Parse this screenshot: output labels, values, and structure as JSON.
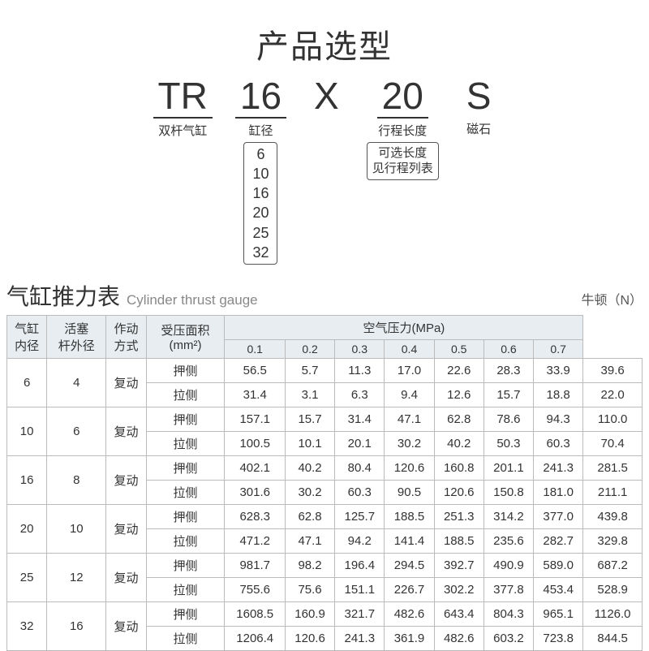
{
  "title": "产品选型",
  "model": {
    "parts": [
      {
        "code": "TR",
        "label": "双杆气缸",
        "options": null
      },
      {
        "code": "16",
        "label": "缸径",
        "options": [
          "6",
          "10",
          "16",
          "20",
          "25",
          "32"
        ]
      },
      {
        "code": "X",
        "label": "",
        "options": null,
        "no_border": true
      },
      {
        "code": "20",
        "label": "行程长度",
        "options_text": [
          "可选长度",
          "见行程列表"
        ]
      },
      {
        "code": "S",
        "label": "磁石",
        "options": null,
        "no_border": true
      }
    ]
  },
  "table": {
    "title_cn": "气缸推力表",
    "title_en": "Cylinder thrust gauge",
    "unit": "牛顿（N）",
    "headers": {
      "bore": "气缸\n内径",
      "rod": "活塞\n杆外径",
      "action": "作动\n方式",
      "area": "受压面积\n(mm²)",
      "pressure_group": "空气压力(MPa)",
      "pressures": [
        "0.1",
        "0.2",
        "0.3",
        "0.4",
        "0.5",
        "0.6",
        "0.7"
      ]
    },
    "action_label": "复动",
    "side_push": "押侧",
    "side_pull": "拉侧",
    "rows": [
      {
        "bore": "6",
        "rod": "4",
        "push": {
          "area": "56.5",
          "v": [
            "5.7",
            "11.3",
            "17.0",
            "22.6",
            "28.3",
            "33.9",
            "39.6"
          ]
        },
        "pull": {
          "area": "31.4",
          "v": [
            "3.1",
            "6.3",
            "9.4",
            "12.6",
            "15.7",
            "18.8",
            "22.0"
          ]
        }
      },
      {
        "bore": "10",
        "rod": "6",
        "push": {
          "area": "157.1",
          "v": [
            "15.7",
            "31.4",
            "47.1",
            "62.8",
            "78.6",
            "94.3",
            "110.0"
          ]
        },
        "pull": {
          "area": "100.5",
          "v": [
            "10.1",
            "20.1",
            "30.2",
            "40.2",
            "50.3",
            "60.3",
            "70.4"
          ]
        }
      },
      {
        "bore": "16",
        "rod": "8",
        "push": {
          "area": "402.1",
          "v": [
            "40.2",
            "80.4",
            "120.6",
            "160.8",
            "201.1",
            "241.3",
            "281.5"
          ]
        },
        "pull": {
          "area": "301.6",
          "v": [
            "30.2",
            "60.3",
            "90.5",
            "120.6",
            "150.8",
            "181.0",
            "211.1"
          ]
        }
      },
      {
        "bore": "20",
        "rod": "10",
        "push": {
          "area": "628.3",
          "v": [
            "62.8",
            "125.7",
            "188.5",
            "251.3",
            "314.2",
            "377.0",
            "439.8"
          ]
        },
        "pull": {
          "area": "471.2",
          "v": [
            "47.1",
            "94.2",
            "141.4",
            "188.5",
            "235.6",
            "282.7",
            "329.8"
          ]
        }
      },
      {
        "bore": "25",
        "rod": "12",
        "push": {
          "area": "981.7",
          "v": [
            "98.2",
            "196.4",
            "294.5",
            "392.7",
            "490.9",
            "589.0",
            "687.2"
          ]
        },
        "pull": {
          "area": "755.6",
          "v": [
            "75.6",
            "151.1",
            "226.7",
            "302.2",
            "377.8",
            "453.4",
            "528.9"
          ]
        }
      },
      {
        "bore": "32",
        "rod": "16",
        "push": {
          "area": "1608.5",
          "v": [
            "160.9",
            "321.7",
            "482.6",
            "643.4",
            "804.3",
            "965.1",
            "1126.0"
          ]
        },
        "pull": {
          "area": "1206.4",
          "v": [
            "120.6",
            "241.3",
            "361.9",
            "482.6",
            "603.2",
            "723.8",
            "844.5"
          ]
        }
      }
    ]
  },
  "colors": {
    "header_bg": "#e7edf1",
    "border": "#bbbbbb",
    "text": "#333333",
    "subtext": "#888888"
  }
}
